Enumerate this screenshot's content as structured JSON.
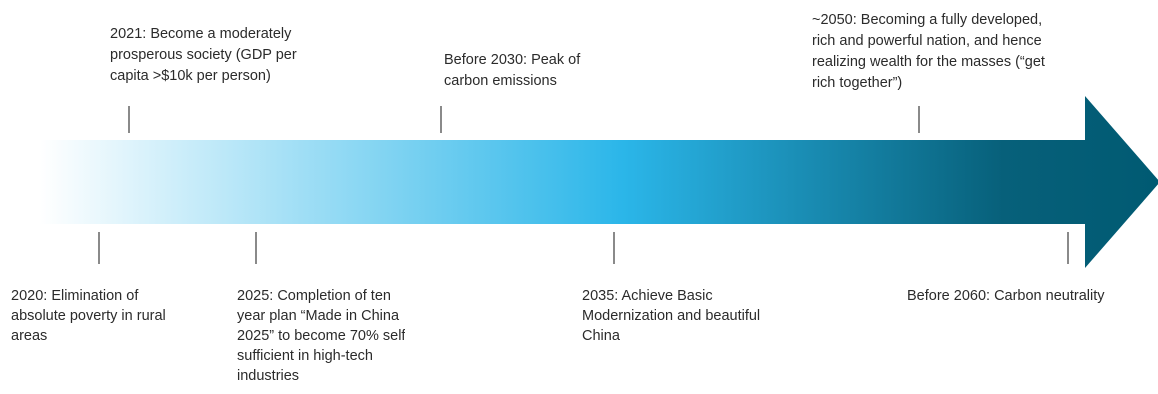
{
  "arrow": {
    "gradient": [
      "#ffffff",
      "#2bb6e9",
      "#07607a",
      "#005a72"
    ]
  },
  "milestones_above": [
    {
      "id": "2021",
      "text": "2021: Become a moderately\nprosperous society (GDP per\ncapita >$10k per person)"
    },
    {
      "id": "2030",
      "text": "Before 2030: Peak of\ncarbon emissions"
    },
    {
      "id": "2050",
      "text": "~2050: Becoming a fully developed,\nrich and powerful nation, and hence\nrealizing wealth for the masses (“get\nrich together”)"
    }
  ],
  "milestones_below": [
    {
      "id": "2020",
      "text": "2020: Elimination of\nabsolute poverty in rural\nareas"
    },
    {
      "id": "2025",
      "text": "2025: Completion of ten\nyear plan “Made in China\n2025” to become 70% self\nsufficient in high-tech\nindustries"
    },
    {
      "id": "2035",
      "text": "2035: Achieve Basic\nModernization and beautiful\nChina"
    },
    {
      "id": "2060",
      "text": "Before 2060: Carbon neutrality"
    }
  ]
}
